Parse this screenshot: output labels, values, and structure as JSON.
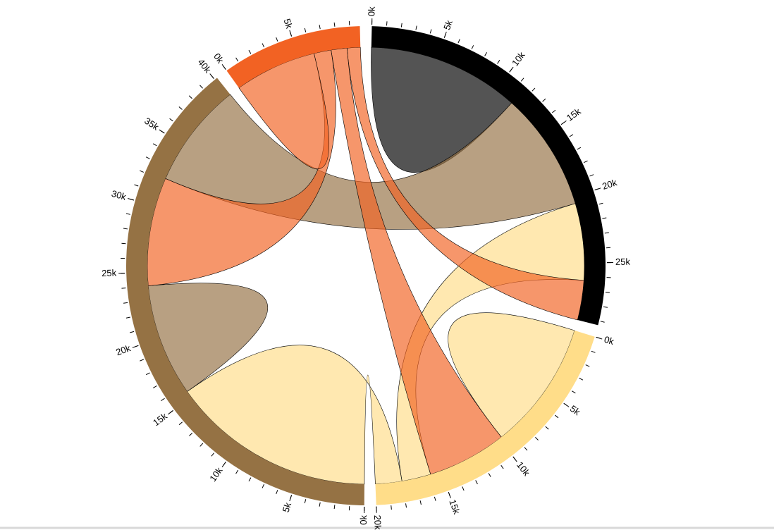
{
  "chart_data": {
    "type": "chord",
    "matrix": [
      [
        11.5,
        5.8,
        9,
        3
      ],
      [
        2.2,
        9.8,
        2,
        6
      ],
      [
        8,
        15.5,
        8.5,
        8.2
      ],
      [
        1,
        1.2,
        1.3,
        6.2
      ]
    ],
    "colors": [
      "#000000",
      "#ffdd89",
      "#957244",
      "#f26223"
    ],
    "ticks": [
      {
        "value": 0,
        "label": "0k"
      },
      {
        "value": 5,
        "label": "5k"
      },
      {
        "value": 10,
        "label": "10k"
      },
      {
        "value": 15,
        "label": "15k"
      },
      {
        "value": 20,
        "label": "20k"
      },
      {
        "value": 25,
        "label": "25k"
      },
      {
        "value": 30,
        "label": "30k"
      },
      {
        "value": 35,
        "label": "35k"
      },
      {
        "value": 40,
        "label": "40k"
      }
    ],
    "minor_ticks": [
      0,
      1,
      2,
      3,
      4,
      5,
      6,
      7,
      8,
      9,
      10,
      11,
      12,
      13,
      14,
      15,
      16,
      17,
      18,
      19,
      20,
      21,
      22,
      23,
      24,
      25,
      26,
      27,
      28,
      29,
      30,
      31,
      32,
      33,
      34,
      35,
      36,
      37,
      38,
      39,
      40,
      41
    ]
  }
}
